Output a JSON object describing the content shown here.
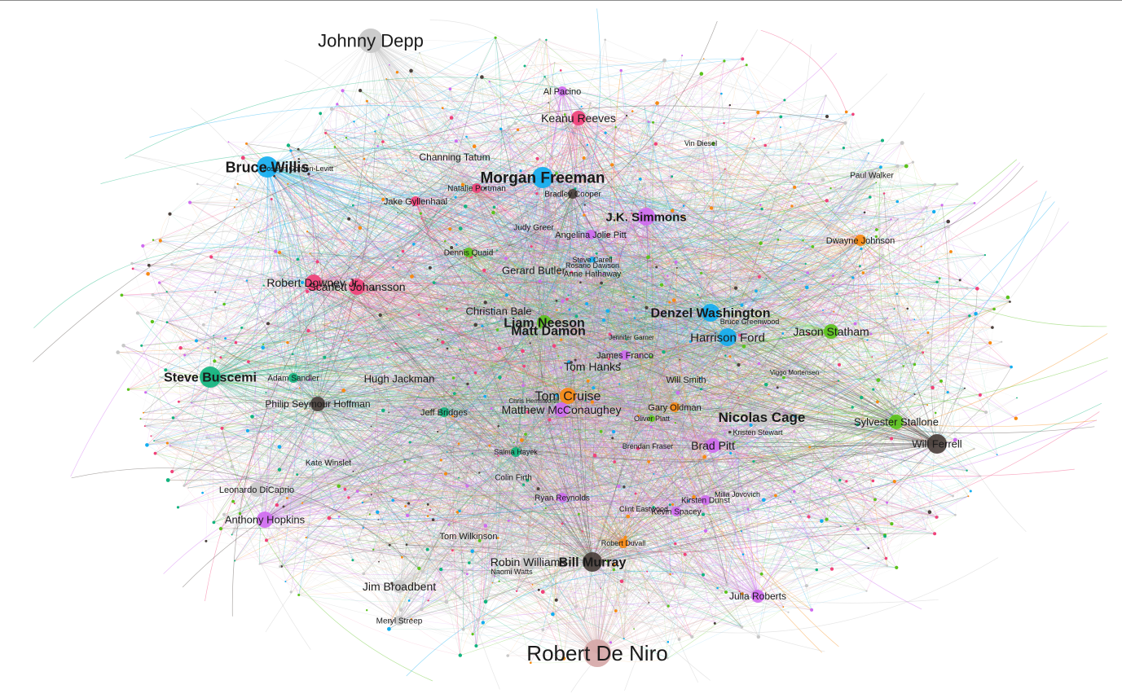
{
  "graph": {
    "colors": {
      "pink": "#f0427a",
      "blue": "#13aef0",
      "green": "#5bc21c",
      "teal": "#12b37e",
      "orange": "#f78a12",
      "purple": "#cf6bf0",
      "gray": "#c8c8c8",
      "dark": "#4a403c",
      "rose": "#d6a8a8"
    },
    "nodes": [
      {
        "label": "Johnny Depp",
        "color": "gray",
        "size": "xl"
      },
      {
        "label": "Bruce Willis",
        "color": "blue",
        "size": "xl"
      },
      {
        "label": "Joseph Gordon-Levitt",
        "color": "gray",
        "size": "s"
      },
      {
        "label": "Al Pacino",
        "color": "purple",
        "size": "m"
      },
      {
        "label": "Keanu Reeves",
        "color": "pink",
        "size": "l"
      },
      {
        "label": "Channing Tatum",
        "color": "gray",
        "size": "m"
      },
      {
        "label": "Vin Diesel",
        "color": "gray",
        "size": "s"
      },
      {
        "label": "Morgan Freeman",
        "color": "blue",
        "size": "xl"
      },
      {
        "label": "Natalie Portman",
        "color": "pink",
        "size": "m"
      },
      {
        "label": "Bradley Cooper",
        "color": "dark",
        "size": "m"
      },
      {
        "label": "Paul Walker",
        "color": "gray",
        "size": "m"
      },
      {
        "label": "Jake Gyllenhaal",
        "color": "pink",
        "size": "m"
      },
      {
        "label": "J.K. Simmons",
        "color": "purple",
        "size": "l"
      },
      {
        "label": "Judy Greer",
        "color": "gray",
        "size": "s"
      },
      {
        "label": "Angelina Jolie Pitt",
        "color": "purple",
        "size": "m"
      },
      {
        "label": "Dwayne Johnson",
        "color": "orange",
        "size": "m"
      },
      {
        "label": "Dennis Quaid",
        "color": "green",
        "size": "m"
      },
      {
        "label": "Steve Carell",
        "color": "blue",
        "size": "s"
      },
      {
        "label": "Rosario Dawson",
        "color": "gray",
        "size": "s"
      },
      {
        "label": "Gerard Butler",
        "color": "gray",
        "size": "m"
      },
      {
        "label": "Anne Hathaway",
        "color": "gray",
        "size": "s"
      },
      {
        "label": "Robert Downey Jr.",
        "color": "pink",
        "size": "l"
      },
      {
        "label": "Scarlett Johansson",
        "color": "pink",
        "size": "l"
      },
      {
        "label": "Christian Bale",
        "color": "gray",
        "size": "m"
      },
      {
        "label": "Denzel Washington",
        "color": "blue",
        "size": "l"
      },
      {
        "label": "Bruce Greenwood",
        "color": "gray",
        "size": "s"
      },
      {
        "label": "Liam Neeson",
        "color": "green",
        "size": "l"
      },
      {
        "label": "Matt Damon",
        "color": "gray",
        "size": "l"
      },
      {
        "label": "Harrison Ford",
        "color": "blue",
        "size": "l"
      },
      {
        "label": "Jason Statham",
        "color": "green",
        "size": "l"
      },
      {
        "label": "Jennifer Garner",
        "color": "gray",
        "size": "s"
      },
      {
        "label": "James Franco",
        "color": "purple",
        "size": "m"
      },
      {
        "label": "Steve Buscemi",
        "color": "teal",
        "size": "xl"
      },
      {
        "label": "Adam Sandler",
        "color": "teal",
        "size": "m"
      },
      {
        "label": "Hugh Jackman",
        "color": "gray",
        "size": "m"
      },
      {
        "label": "Tom Hanks",
        "color": "gray",
        "size": "m"
      },
      {
        "label": "Will Smith",
        "color": "gray",
        "size": "m"
      },
      {
        "label": "Viggo Mortensen",
        "color": "gray",
        "size": "s"
      },
      {
        "label": "Philip Seymour Hoffman",
        "color": "dark",
        "size": "l"
      },
      {
        "label": "Tom Cruise",
        "color": "orange",
        "size": "l"
      },
      {
        "label": "Chris Hemsworth",
        "color": "gray",
        "size": "s"
      },
      {
        "label": "Matthew McConaughey",
        "color": "purple",
        "size": "l"
      },
      {
        "label": "Gary Oldman",
        "color": "orange",
        "size": "m"
      },
      {
        "label": "Nicolas Cage",
        "color": "gray",
        "size": "xl"
      },
      {
        "label": "Jeff Bridges",
        "color": "teal",
        "size": "m"
      },
      {
        "label": "Oliver Platt",
        "color": "green",
        "size": "s"
      },
      {
        "label": "Kristen Stewart",
        "color": "gray",
        "size": "s"
      },
      {
        "label": "Sylvester Stallone",
        "color": "green",
        "size": "l"
      },
      {
        "label": "Will Ferrell",
        "color": "dark",
        "size": "xl"
      },
      {
        "label": "Kate Winslet",
        "color": "gray",
        "size": "m"
      },
      {
        "label": "Salma Hayek",
        "color": "teal",
        "size": "m"
      },
      {
        "label": "Brendan Fraser",
        "color": "gray",
        "size": "s"
      },
      {
        "label": "Brad Pitt",
        "color": "purple",
        "size": "l"
      },
      {
        "label": "Colin Firth",
        "color": "gray",
        "size": "m"
      },
      {
        "label": "Leonardo DiCaprio",
        "color": "gray",
        "size": "l"
      },
      {
        "label": "Milla Jovovich",
        "color": "gray",
        "size": "s"
      },
      {
        "label": "Ryan Reynolds",
        "color": "purple",
        "size": "m"
      },
      {
        "label": "Kirsten Dunst",
        "color": "purple",
        "size": "m"
      },
      {
        "label": "Anthony Hopkins",
        "color": "purple",
        "size": "l"
      },
      {
        "label": "Clint Eastwood",
        "color": "gray",
        "size": "s"
      },
      {
        "label": "Kevin Spacey",
        "color": "purple",
        "size": "m"
      },
      {
        "label": "Tom Wilkinson",
        "color": "gray",
        "size": "m"
      },
      {
        "label": "Robert Duvall",
        "color": "orange",
        "size": "m"
      },
      {
        "label": "Robin Williams",
        "color": "gray",
        "size": "l"
      },
      {
        "label": "Bill Murray",
        "color": "dark",
        "size": "l"
      },
      {
        "label": "Naomi Watts",
        "color": "gray",
        "size": "s"
      },
      {
        "label": "Jim Broadbent",
        "color": "gray",
        "size": "m"
      },
      {
        "label": "Julia Roberts",
        "color": "purple",
        "size": "m"
      },
      {
        "label": "Meryl Streep",
        "color": "gray",
        "size": "m"
      },
      {
        "label": "Robert De Niro",
        "color": "rose",
        "size": "xxl"
      }
    ]
  }
}
